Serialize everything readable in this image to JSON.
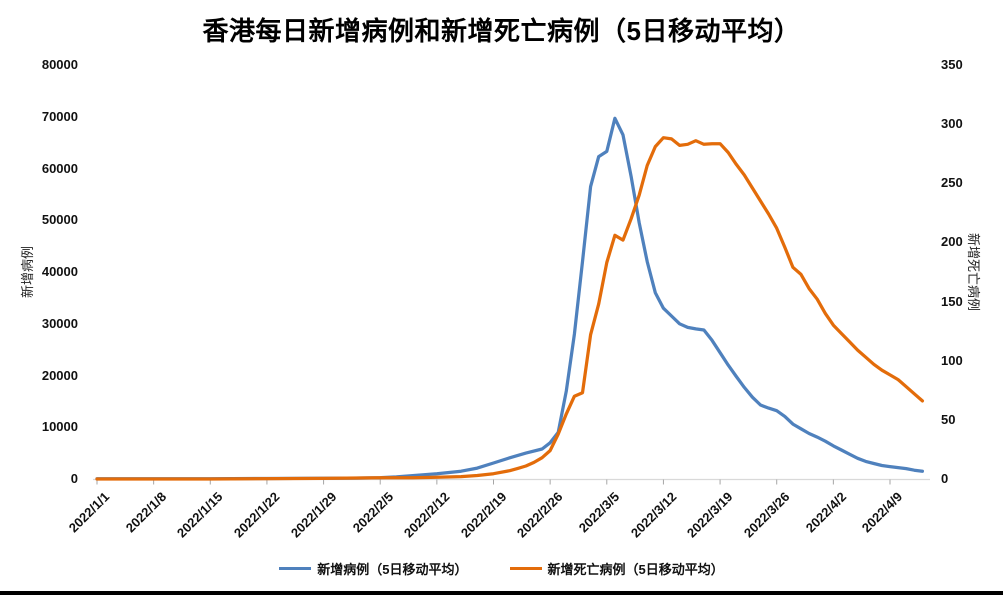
{
  "page": {
    "background": "#ffffff",
    "bottom_border_color": "#000000"
  },
  "chart_data": {
    "type": "line",
    "title": "香港每日新增病例和新增死亡病例（5日移动平均）",
    "grid": false,
    "legend_position": "bottom",
    "colors": {
      "cases": "#4f81bd",
      "deaths": "#e36c0a",
      "axis_line": "#d9d9d9",
      "tick_mark": "#a6a6a6"
    },
    "x_axis": {
      "start_date": "2022/1/1",
      "end_date": "2022/4/13",
      "tick_labels": [
        "2022/1/1",
        "2022/1/8",
        "2022/1/15",
        "2022/1/22",
        "2022/1/29",
        "2022/2/5",
        "2022/2/12",
        "2022/2/19",
        "2022/2/26",
        "2022/3/5",
        "2022/3/12",
        "2022/3/19",
        "2022/3/26",
        "2022/4/2",
        "2022/4/9"
      ]
    },
    "y_axis_left": {
      "label": "新增病例",
      "min": 0,
      "max": 80000,
      "tick_step": 10000,
      "ticks": [
        0,
        10000,
        20000,
        30000,
        40000,
        50000,
        60000,
        70000,
        80000
      ]
    },
    "y_axis_right": {
      "label": "新增死亡病例",
      "min": 0,
      "max": 350,
      "tick_step": 50,
      "ticks": [
        0,
        50,
        100,
        150,
        200,
        250,
        300,
        350
      ]
    },
    "series": [
      {
        "name": "新增病例（5日移动平均）",
        "axis": "left",
        "color": "#4f81bd",
        "points": [
          [
            "2022/1/1",
            30
          ],
          [
            "2022/1/8",
            40
          ],
          [
            "2022/1/15",
            60
          ],
          [
            "2022/1/22",
            90
          ],
          [
            "2022/1/29",
            130
          ],
          [
            "2022/2/2",
            180
          ],
          [
            "2022/2/5",
            260
          ],
          [
            "2022/2/7",
            400
          ],
          [
            "2022/2/9",
            650
          ],
          [
            "2022/2/12",
            1000
          ],
          [
            "2022/2/15",
            1500
          ],
          [
            "2022/2/17",
            2100
          ],
          [
            "2022/2/19",
            3100
          ],
          [
            "2022/2/21",
            4100
          ],
          [
            "2022/2/23",
            5000
          ],
          [
            "2022/2/25",
            5800
          ],
          [
            "2022/2/26",
            7000
          ],
          [
            "2022/2/27",
            9000
          ],
          [
            "2022/2/28",
            17000
          ],
          [
            "2022/3/1",
            28000
          ],
          [
            "2022/3/2",
            42000
          ],
          [
            "2022/3/3",
            56500
          ],
          [
            "2022/3/4",
            62300
          ],
          [
            "2022/3/5",
            63300
          ],
          [
            "2022/3/6",
            69700
          ],
          [
            "2022/3/7",
            66500
          ],
          [
            "2022/3/8",
            58500
          ],
          [
            "2022/3/9",
            49500
          ],
          [
            "2022/3/10",
            42000
          ],
          [
            "2022/3/11",
            36000
          ],
          [
            "2022/3/12",
            33000
          ],
          [
            "2022/3/13",
            31500
          ],
          [
            "2022/3/14",
            30000
          ],
          [
            "2022/3/15",
            29300
          ],
          [
            "2022/3/16",
            29000
          ],
          [
            "2022/3/17",
            28800
          ],
          [
            "2022/3/18",
            26800
          ],
          [
            "2022/3/19",
            24400
          ],
          [
            "2022/3/20",
            22000
          ],
          [
            "2022/3/21",
            19800
          ],
          [
            "2022/3/22",
            17700
          ],
          [
            "2022/3/23",
            15800
          ],
          [
            "2022/3/24",
            14300
          ],
          [
            "2022/3/25",
            13700
          ],
          [
            "2022/3/26",
            13200
          ],
          [
            "2022/3/27",
            12100
          ],
          [
            "2022/3/28",
            10600
          ],
          [
            "2022/3/29",
            9700
          ],
          [
            "2022/3/30",
            8800
          ],
          [
            "2022/3/31",
            8100
          ],
          [
            "2022/4/1",
            7300
          ],
          [
            "2022/4/2",
            6400
          ],
          [
            "2022/4/3",
            5600
          ],
          [
            "2022/4/4",
            4800
          ],
          [
            "2022/4/5",
            4000
          ],
          [
            "2022/4/6",
            3400
          ],
          [
            "2022/4/7",
            3000
          ],
          [
            "2022/4/8",
            2600
          ],
          [
            "2022/4/9",
            2400
          ],
          [
            "2022/4/10",
            2200
          ],
          [
            "2022/4/11",
            2000
          ],
          [
            "2022/4/12",
            1700
          ],
          [
            "2022/4/13",
            1500
          ]
        ]
      },
      {
        "name": "新增死亡病例（5日移动平均）",
        "axis": "right",
        "color": "#e36c0a",
        "points": [
          [
            "2022/1/1",
            0
          ],
          [
            "2022/1/15",
            0
          ],
          [
            "2022/1/29",
            0.5
          ],
          [
            "2022/2/5",
            1
          ],
          [
            "2022/2/9",
            1
          ],
          [
            "2022/2/12",
            1.5
          ],
          [
            "2022/2/15",
            2
          ],
          [
            "2022/2/17",
            3
          ],
          [
            "2022/2/19",
            4.5
          ],
          [
            "2022/2/21",
            7
          ],
          [
            "2022/2/22",
            9
          ],
          [
            "2022/2/23",
            11
          ],
          [
            "2022/2/24",
            14
          ],
          [
            "2022/2/25",
            18
          ],
          [
            "2022/2/26",
            24
          ],
          [
            "2022/2/27",
            38
          ],
          [
            "2022/2/28",
            55
          ],
          [
            "2022/3/1",
            70
          ],
          [
            "2022/3/2",
            73
          ],
          [
            "2022/3/3",
            122
          ],
          [
            "2022/3/4",
            148
          ],
          [
            "2022/3/5",
            183
          ],
          [
            "2022/3/6",
            206
          ],
          [
            "2022/3/7",
            202
          ],
          [
            "2022/3/8",
            220
          ],
          [
            "2022/3/9",
            240
          ],
          [
            "2022/3/10",
            265
          ],
          [
            "2022/3/11",
            281
          ],
          [
            "2022/3/12",
            288.5
          ],
          [
            "2022/3/13",
            287.5
          ],
          [
            "2022/3/14",
            282
          ],
          [
            "2022/3/15",
            283
          ],
          [
            "2022/3/16",
            286
          ],
          [
            "2022/3/17",
            283
          ],
          [
            "2022/3/18",
            283.5
          ],
          [
            "2022/3/19",
            283.5
          ],
          [
            "2022/3/20",
            276
          ],
          [
            "2022/3/21",
            266
          ],
          [
            "2022/3/22",
            257
          ],
          [
            "2022/3/23",
            246
          ],
          [
            "2022/3/24",
            235
          ],
          [
            "2022/3/25",
            224
          ],
          [
            "2022/3/26",
            212
          ],
          [
            "2022/3/27",
            196
          ],
          [
            "2022/3/28",
            179
          ],
          [
            "2022/3/29",
            173
          ],
          [
            "2022/3/30",
            161
          ],
          [
            "2022/3/31",
            152
          ],
          [
            "2022/4/1",
            140
          ],
          [
            "2022/4/2",
            130
          ],
          [
            "2022/4/3",
            123
          ],
          [
            "2022/4/4",
            116
          ],
          [
            "2022/4/5",
            109
          ],
          [
            "2022/4/6",
            103
          ],
          [
            "2022/4/7",
            97
          ],
          [
            "2022/4/8",
            92
          ],
          [
            "2022/4/9",
            88
          ],
          [
            "2022/4/10",
            84
          ],
          [
            "2022/4/11",
            78
          ],
          [
            "2022/4/12",
            72
          ],
          [
            "2022/4/13",
            66
          ]
        ]
      }
    ]
  }
}
